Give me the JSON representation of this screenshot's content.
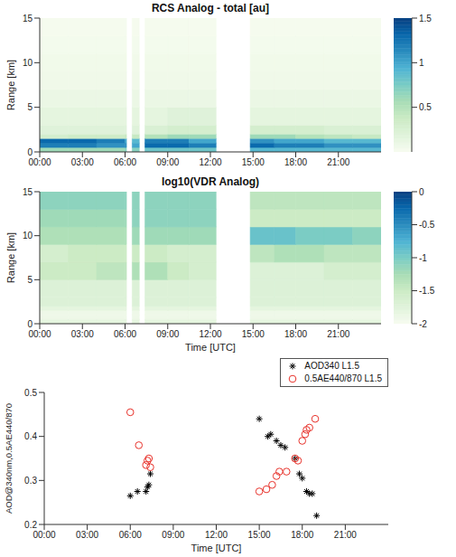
{
  "chart_data": [
    {
      "type": "heatmap",
      "title": "RCS Analog - total [au]",
      "ylabel": "Range [km]",
      "xlim": [
        0,
        24
      ],
      "xticks": [
        {
          "value": 0,
          "label": "00:00"
        },
        {
          "value": 3,
          "label": "03:00"
        },
        {
          "value": 6,
          "label": "06:00"
        },
        {
          "value": 9,
          "label": "09:00"
        },
        {
          "value": 12,
          "label": "12:00"
        },
        {
          "value": 15,
          "label": "15:00"
        },
        {
          "value": 18,
          "label": "18:00"
        },
        {
          "value": 21,
          "label": "21:00"
        }
      ],
      "ylim": [
        0,
        15
      ],
      "yticks": [
        0,
        5,
        10,
        15
      ],
      "x_edges": [
        0,
        2,
        4,
        6,
        6.1,
        6.5,
        7,
        7.4,
        9,
        10.5,
        12.4,
        14.8,
        16.5,
        18,
        20,
        22,
        24
      ],
      "y_edges": [
        0,
        0.5,
        1,
        1.5,
        2,
        3,
        5,
        7,
        9,
        11,
        13,
        15
      ],
      "cells": [
        [
          0.6,
          0.6,
          0.6,
          0.7,
          null,
          0.7,
          null,
          0.8,
          0.8,
          0.8,
          null,
          0.9,
          0.9,
          0.9,
          0.9,
          0.9
        ],
        [
          1.2,
          1.2,
          1.1,
          1.1,
          null,
          1.0,
          null,
          1.3,
          1.3,
          1.2,
          null,
          1.3,
          1.2,
          1.2,
          1.1,
          1.1
        ],
        [
          1.3,
          1.3,
          1.2,
          1.0,
          null,
          0.9,
          null,
          1.2,
          1.2,
          1.0,
          null,
          1.1,
          1.0,
          1.0,
          0.9,
          0.9
        ],
        [
          0.3,
          0.35,
          0.35,
          0.4,
          null,
          0.4,
          null,
          0.5,
          0.6,
          0.6,
          null,
          0.6,
          0.6,
          0.5,
          0.45,
          0.4
        ],
        [
          0.2,
          0.2,
          0.2,
          0.2,
          null,
          0.2,
          null,
          0.25,
          0.3,
          0.3,
          null,
          0.3,
          0.3,
          0.3,
          0.25,
          0.25
        ],
        [
          0.15,
          0.15,
          0.15,
          0.15,
          null,
          0.15,
          null,
          0.15,
          0.2,
          0.2,
          null,
          0.15,
          0.15,
          0.15,
          0.15,
          0.15
        ],
        [
          0.1,
          0.1,
          0.1,
          0.1,
          null,
          0.1,
          null,
          0.1,
          0.1,
          0.1,
          null,
          0.1,
          0.1,
          0.1,
          0.1,
          0.1
        ],
        [
          0.06,
          0.06,
          0.06,
          0.06,
          null,
          0.06,
          null,
          0.06,
          0.06,
          0.06,
          null,
          0.06,
          0.06,
          0.06,
          0.06,
          0.06
        ],
        [
          0.05,
          0.05,
          0.05,
          0.05,
          null,
          0.05,
          null,
          0.05,
          0.05,
          0.05,
          null,
          0.05,
          0.05,
          0.05,
          0.05,
          0.05
        ],
        [
          0.03,
          0.03,
          0.03,
          0.03,
          null,
          0.03,
          null,
          0.03,
          0.03,
          0.03,
          null,
          0.03,
          0.03,
          0.03,
          0.03,
          0.03
        ],
        [
          0.02,
          0.02,
          0.02,
          0.02,
          null,
          0.02,
          null,
          0.02,
          0.02,
          0.02,
          null,
          0.02,
          0.02,
          0.02,
          0.02,
          0.02
        ]
      ],
      "colorbar": {
        "range": [
          0,
          1.5
        ],
        "ticks": [
          0.5,
          1,
          1.5
        ]
      }
    },
    {
      "type": "heatmap",
      "title": "log10(VDR Analog)",
      "ylabel": "Range [km]",
      "xlabel": "Time [UTC]",
      "xlim": [
        0,
        24
      ],
      "xticks": [
        {
          "value": 0,
          "label": "00:00"
        },
        {
          "value": 3,
          "label": "03:00"
        },
        {
          "value": 6,
          "label": "06:00"
        },
        {
          "value": 9,
          "label": "09:00"
        },
        {
          "value": 12,
          "label": "12:00"
        },
        {
          "value": 15,
          "label": "15:00"
        },
        {
          "value": 18,
          "label": "18:00"
        },
        {
          "value": 21,
          "label": "21:00"
        }
      ],
      "ylim": [
        0,
        15
      ],
      "yticks": [
        0,
        5,
        10,
        15
      ],
      "x_edges": [
        0,
        2,
        4,
        6,
        6.1,
        6.5,
        7,
        7.4,
        9,
        10.5,
        12.4,
        14.8,
        16.5,
        18,
        20,
        22,
        24
      ],
      "y_edges": [
        0,
        0.5,
        1,
        1.5,
        2,
        3,
        5,
        7,
        9,
        11,
        13,
        15
      ],
      "cells": [
        [
          -1.8,
          -1.8,
          -1.8,
          -1.8,
          null,
          -1.8,
          null,
          -1.8,
          -1.8,
          -1.8,
          null,
          -1.8,
          -1.8,
          -1.8,
          -1.8,
          -1.8
        ],
        [
          -1.9,
          -1.9,
          -1.9,
          -1.9,
          null,
          -1.9,
          null,
          -1.9,
          -1.9,
          -1.9,
          null,
          -1.9,
          -1.9,
          -1.9,
          -1.9,
          -1.9
        ],
        [
          -1.9,
          -1.9,
          -1.9,
          -1.9,
          null,
          -1.9,
          null,
          -1.9,
          -1.9,
          -1.9,
          null,
          -1.9,
          -1.9,
          -1.9,
          -1.9,
          -1.9
        ],
        [
          -1.8,
          -1.8,
          -1.8,
          -1.8,
          null,
          -1.8,
          null,
          -1.8,
          -1.8,
          -1.8,
          null,
          -1.8,
          -1.8,
          -1.8,
          -1.8,
          -1.8
        ],
        [
          -1.7,
          -1.7,
          -1.7,
          -1.7,
          null,
          -1.7,
          null,
          -1.7,
          -1.7,
          -1.7,
          null,
          -1.7,
          -1.7,
          -1.7,
          -1.7,
          -1.7
        ],
        [
          -1.7,
          -1.7,
          -1.7,
          -1.7,
          null,
          -1.7,
          null,
          -1.7,
          -1.7,
          -1.7,
          null,
          -1.7,
          -1.7,
          -1.7,
          -1.7,
          -1.7
        ],
        [
          -1.5,
          -1.5,
          -1.4,
          -1.4,
          null,
          -1.3,
          null,
          -1.3,
          -1.5,
          -1.6,
          null,
          -1.7,
          -1.7,
          -1.7,
          -1.6,
          -1.6
        ],
        [
          -1.6,
          -1.5,
          -1.5,
          -1.5,
          null,
          -1.5,
          null,
          -1.5,
          -1.6,
          -1.6,
          null,
          -1.4,
          -1.3,
          -1.3,
          -1.4,
          -1.4
        ],
        [
          -1.3,
          -1.3,
          -1.3,
          -1.3,
          null,
          -1.2,
          null,
          -1.2,
          -1.2,
          -1.2,
          null,
          -0.9,
          -0.9,
          -1.0,
          -1.0,
          -1.1
        ],
        [
          -1.2,
          -1.2,
          -1.2,
          -1.2,
          null,
          -1.1,
          null,
          -1.1,
          -1.1,
          -1.1,
          null,
          -1.5,
          -1.5,
          -1.5,
          -1.5,
          -1.5
        ],
        [
          -1.1,
          -1.1,
          -1.1,
          -1.1,
          null,
          -1.1,
          null,
          -1.1,
          -1.1,
          -1.1,
          null,
          -1.4,
          -1.4,
          -1.4,
          -1.4,
          -1.4
        ]
      ],
      "colorbar": {
        "range": [
          -2,
          0
        ],
        "ticks": [
          -2,
          -1.5,
          -1,
          -0.5,
          0
        ]
      }
    },
    {
      "type": "scatter",
      "ylabel": "AOD@340nm,0.5AE440/870",
      "xlabel": "Time [UTC]",
      "legend": "top right",
      "xlim": [
        0,
        24
      ],
      "xticks": [
        {
          "value": 0,
          "label": "00:00"
        },
        {
          "value": 3,
          "label": "03:00"
        },
        {
          "value": 6,
          "label": "06:00"
        },
        {
          "value": 9,
          "label": "09:00"
        },
        {
          "value": 12,
          "label": "12:00"
        },
        {
          "value": 15,
          "label": "15:00"
        },
        {
          "value": 18,
          "label": "18:00"
        },
        {
          "value": 21,
          "label": "21:00"
        }
      ],
      "ylim": [
        0.2,
        0.5
      ],
      "yticks": [
        0.2,
        0.3,
        0.4,
        0.5
      ],
      "series": [
        {
          "name": "AOD340 L1.5",
          "color": "#000000",
          "marker": "asterisk",
          "x": [
            6.0,
            6.5,
            7.1,
            7.2,
            7.3,
            7.4,
            15.0,
            15.6,
            15.8,
            16.2,
            16.5,
            16.8,
            17.5,
            17.8,
            18.0,
            18.3,
            18.5,
            18.7,
            19.0
          ],
          "values": [
            0.265,
            0.275,
            0.275,
            0.285,
            0.29,
            0.315,
            0.44,
            0.4,
            0.405,
            0.39,
            0.38,
            0.375,
            0.35,
            0.315,
            0.305,
            0.275,
            0.27,
            0.27,
            0.22
          ]
        },
        {
          "name": "0.5AE440/870 L1.5",
          "color": "#e8322b",
          "marker": "circle_open",
          "x": [
            6.0,
            6.6,
            7.1,
            7.2,
            7.3,
            7.4,
            15.0,
            15.5,
            15.9,
            16.2,
            16.4,
            16.9,
            17.5,
            17.7,
            18.0,
            18.2,
            18.3,
            18.5,
            18.9
          ],
          "values": [
            0.455,
            0.38,
            0.335,
            0.345,
            0.35,
            0.33,
            0.275,
            0.28,
            0.29,
            0.31,
            0.32,
            0.32,
            0.35,
            0.345,
            0.39,
            0.405,
            0.415,
            0.42,
            0.44
          ]
        }
      ]
    }
  ]
}
